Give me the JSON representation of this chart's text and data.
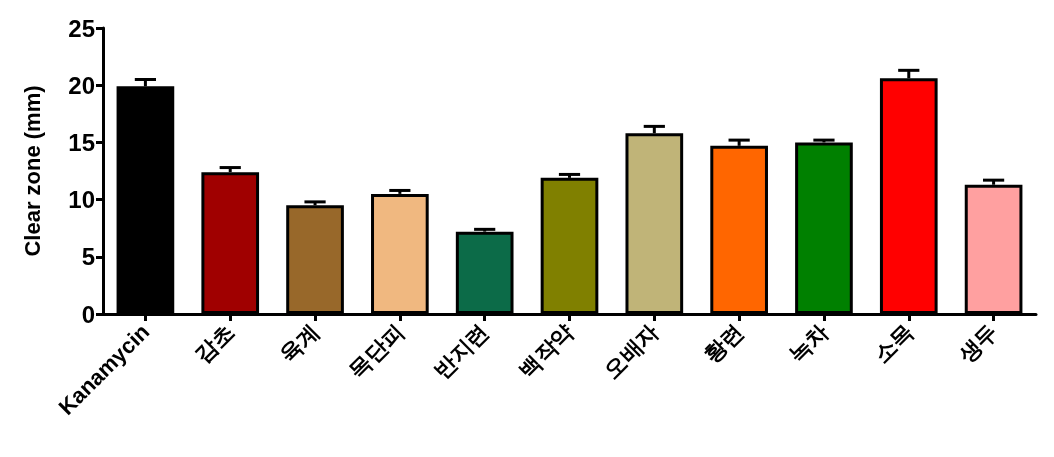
{
  "chart_data": {
    "type": "bar",
    "ylabel": "Clear zone (mm)",
    "categories": [
      "Kanamycin",
      "감초",
      "육계",
      "목단피",
      "반지련",
      "백작약",
      "오배자",
      "황련",
      "녹차",
      "소목",
      "생두"
    ],
    "values": [
      19.9,
      12.4,
      9.5,
      10.5,
      7.2,
      11.9,
      15.8,
      14.7,
      15.0,
      20.6,
      11.3
    ],
    "errors": [
      0.6,
      0.4,
      0.3,
      0.3,
      0.2,
      0.3,
      0.6,
      0.5,
      0.2,
      0.7,
      0.4
    ],
    "colors": [
      "#000000",
      "#a00000",
      "#98682a",
      "#f0b880",
      "#0c6b48",
      "#808000",
      "#c0b478",
      "#ff6600",
      "#008000",
      "#ff0000",
      "#ffa0a0"
    ],
    "ylim": [
      0,
      25
    ],
    "yticks": [
      0,
      5,
      10,
      15,
      20,
      25
    ],
    "grid": false
  }
}
